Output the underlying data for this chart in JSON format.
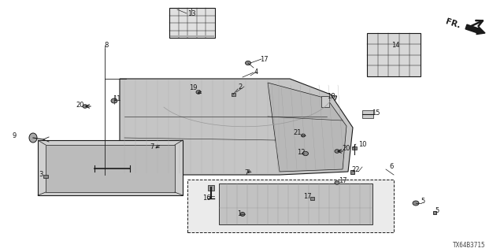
{
  "bg_color": "#ffffff",
  "line_color": "#1a1a1a",
  "part_number_text": "TX64B3715",
  "figsize": [
    6.4,
    3.2
  ],
  "dpi": 100
}
